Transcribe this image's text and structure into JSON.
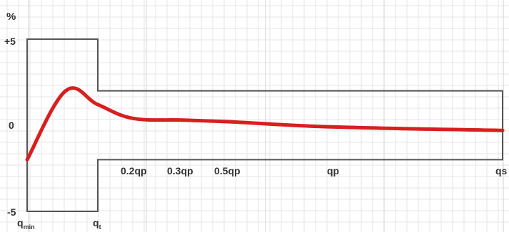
{
  "chart_data": {
    "type": "line",
    "ylabel": "%",
    "y_ticks": [
      {
        "label": "+5",
        "value": 5
      },
      {
        "label": "0",
        "value": 0
      },
      {
        "label": "-5",
        "value": -5
      }
    ],
    "ylim": [
      -5,
      5
    ],
    "x_ticks": [
      {
        "id": "qmin",
        "label": "q",
        "sub": "min"
      },
      {
        "id": "qt",
        "label": "q",
        "sub": "t"
      },
      {
        "id": "q02",
        "label": "0.2qp"
      },
      {
        "id": "q03",
        "label": "0.3qp"
      },
      {
        "id": "q05",
        "label": "0.5qp"
      },
      {
        "id": "qp",
        "label": "qp"
      },
      {
        "id": "qs",
        "label": "qs"
      }
    ],
    "tolerance_envelope": {
      "low_flow": {
        "from": "qmin",
        "to": "qt",
        "limits": [
          -5,
          5
        ]
      },
      "high_flow": {
        "from": "qt",
        "to": "qs",
        "limits": [
          -2,
          2
        ]
      }
    },
    "series": [
      {
        "color": "#d81f1f",
        "points": [
          {
            "x": "qmin",
            "y": -2.0
          },
          {
            "x": "q_peak",
            "y": 2.0
          },
          {
            "x": "qt",
            "y": 1.2
          },
          {
            "x": "q02",
            "y": 0.4
          },
          {
            "x": "q03",
            "y": 0.3
          },
          {
            "x": "q05",
            "y": 0.2
          },
          {
            "x": "qp",
            "y": -0.1
          },
          {
            "x": "qs",
            "y": -0.3
          }
        ]
      }
    ],
    "grid": true,
    "colors": {
      "envelope": "#555555",
      "grid_minor": "#e6e6e6",
      "grid_major": "#d2d2d2",
      "curve": "#d81f1f"
    }
  }
}
